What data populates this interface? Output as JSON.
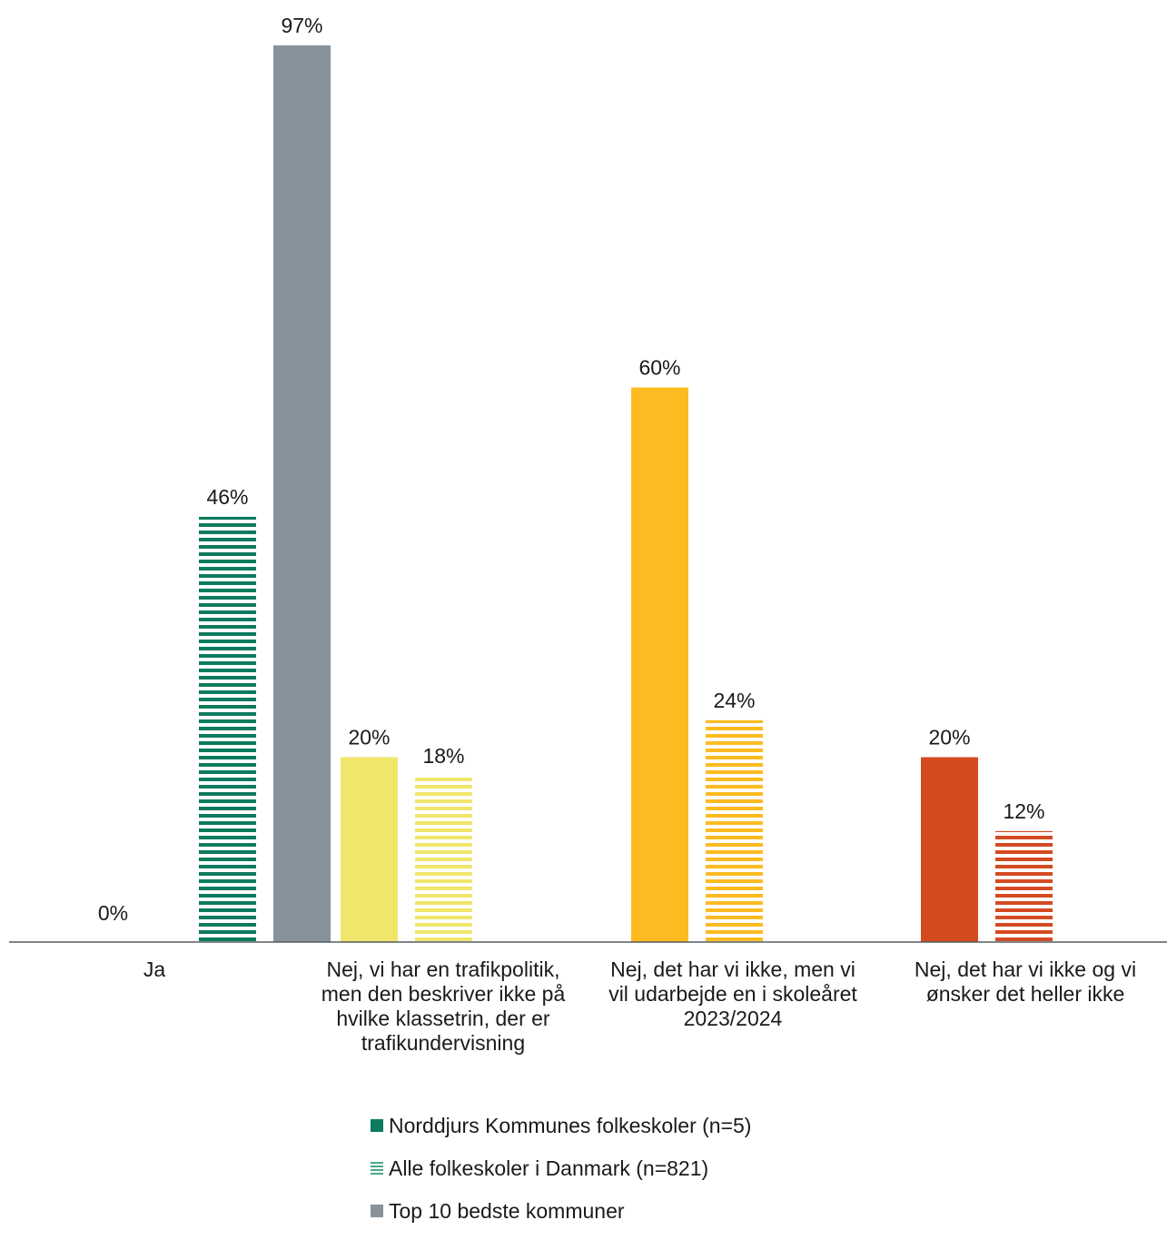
{
  "chart_data": {
    "type": "bar",
    "categories": [
      "Ja",
      "Nej, vi har en trafikpolitik, men den beskriver ikke på hvilke klassetrin, der er trafikundervisning",
      "Nej, det har vi ikke, men vi vil udarbejde en i skoleåret 2023/2024",
      "Nej, det har vi ikke og vi ønsker det heller ikke"
    ],
    "category_lines": [
      [
        "Ja"
      ],
      [
        "Nej, vi har en trafikpolitik,",
        "men den beskriver ikke på",
        "hvilke klassetrin, der er",
        "trafikundervisning"
      ],
      [
        "Nej, det har vi ikke, men vi",
        "vil udarbejde en i skoleåret",
        "2023/2024"
      ],
      [
        "Nej, det har vi ikke og vi",
        "ønsker det heller ikke"
      ]
    ],
    "series": [
      {
        "name": "Norddjurs Kommunes folkeskoler (n=5)",
        "values": [
          0,
          20,
          60,
          20
        ],
        "labels": [
          "0%",
          "20%",
          "60%",
          "20%"
        ],
        "pattern": "solid"
      },
      {
        "name": "Alle folkeskoler i Danmark (n=821)",
        "values": [
          46,
          18,
          24,
          12
        ],
        "labels": [
          "46%",
          "18%",
          "24%",
          "12%"
        ],
        "pattern": "striped"
      },
      {
        "name": "Top 10 bedste kommuner",
        "values": [
          97,
          null,
          null,
          null
        ],
        "labels": [
          "97%",
          "",
          "",
          ""
        ],
        "pattern": "solid"
      }
    ],
    "category_colors": [
      "#0e7a5e",
      "#f0e66c",
      "#fbbb21",
      "#d44b22"
    ],
    "series3_color": "#87929b",
    "ylim": [
      0,
      100
    ],
    "value_suffix": "%",
    "grid": false,
    "legend_position": "bottom"
  },
  "legend": {
    "items": [
      {
        "label": "Norddjurs Kommunes folkeskoler (n=5)",
        "swatch": "solid-green"
      },
      {
        "label": "Alle folkeskoler i Danmark (n=821)",
        "swatch": "striped-green"
      },
      {
        "label": "Top 10 bedste kommuner",
        "swatch": "solid-gray"
      }
    ]
  }
}
